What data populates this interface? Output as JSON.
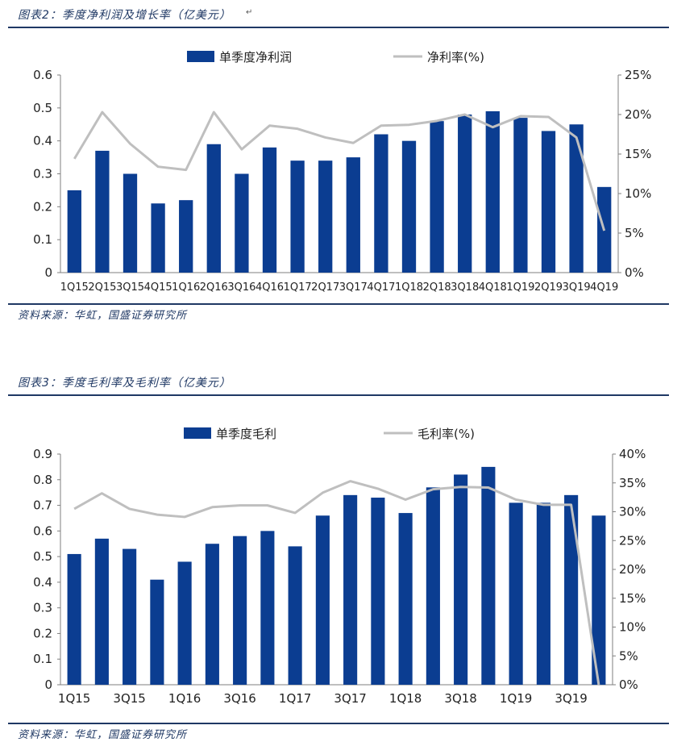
{
  "figures": [
    {
      "title": "图表2：季度净利润及增长率（亿美元）",
      "source": "资料来源：华虹，国盛证券研究所"
    },
    {
      "title": "图表3：季度毛利率及毛利率（亿美元）",
      "source": "资料来源：华虹，国盛证券研究所"
    }
  ],
  "chart_data": [
    {
      "type": "bar",
      "categories": [
        "1Q15",
        "2Q15",
        "3Q15",
        "4Q15",
        "1Q16",
        "2Q16",
        "3Q16",
        "4Q16",
        "1Q17",
        "2Q17",
        "3Q17",
        "4Q17",
        "1Q18",
        "2Q18",
        "3Q18",
        "4Q18",
        "1Q19",
        "2Q19",
        "3Q19",
        "4Q19"
      ],
      "tick_labels": [
        "1Q15",
        "2Q15",
        "3Q15",
        "4Q15",
        "1Q16",
        "2Q16",
        "3Q16",
        "4Q16",
        "1Q17",
        "2Q17",
        "3Q17",
        "4Q17",
        "1Q18",
        "2Q18",
        "3Q18",
        "4Q18",
        "1Q19",
        "2Q19",
        "3Q19",
        "4Q19"
      ],
      "series": [
        {
          "name": "单季度净利润",
          "kind": "bar",
          "axis": "left",
          "color": "#0b3d91",
          "values": [
            0.25,
            0.37,
            0.3,
            0.21,
            0.22,
            0.39,
            0.3,
            0.38,
            0.34,
            0.34,
            0.35,
            0.42,
            0.4,
            0.46,
            0.48,
            0.49,
            0.47,
            0.43,
            0.45,
            0.26
          ]
        },
        {
          "name": "净利率(%)",
          "kind": "line",
          "axis": "right",
          "color": "#bfbfbf",
          "values": [
            14.4,
            20.3,
            16.3,
            13.4,
            13.0,
            20.3,
            15.6,
            18.6,
            18.2,
            17.1,
            16.4,
            18.6,
            18.7,
            19.2,
            20.0,
            18.4,
            19.8,
            19.7,
            17.1,
            5.3
          ]
        }
      ],
      "ylim": [
        0,
        0.6
      ],
      "yticks": [
        "0",
        "0.1",
        "0.2",
        "0.3",
        "0.4",
        "0.5",
        "0.6"
      ],
      "y2lim": [
        0,
        25
      ],
      "y2ticks": [
        "0%",
        "5%",
        "10%",
        "15%",
        "20%",
        "25%"
      ],
      "legend": "top-center",
      "grid": false
    },
    {
      "type": "bar",
      "categories": [
        "1Q15",
        "2Q15",
        "3Q15",
        "4Q15",
        "1Q16",
        "2Q16",
        "3Q16",
        "4Q16",
        "1Q17",
        "2Q17",
        "3Q17",
        "4Q17",
        "1Q18",
        "2Q18",
        "3Q18",
        "4Q18",
        "1Q19",
        "2Q19",
        "3Q19",
        "4Q19"
      ],
      "tick_labels": [
        "1Q15",
        "",
        "3Q15",
        "",
        "1Q16",
        "",
        "3Q16",
        "",
        "1Q17",
        "",
        "3Q17",
        "",
        "1Q18",
        "",
        "3Q18",
        "",
        "1Q19",
        "",
        "3Q19",
        ""
      ],
      "series": [
        {
          "name": "单季度毛利",
          "kind": "bar",
          "axis": "left",
          "color": "#0b3d91",
          "values": [
            0.51,
            0.57,
            0.53,
            0.41,
            0.48,
            0.55,
            0.58,
            0.6,
            0.54,
            0.66,
            0.74,
            0.73,
            0.67,
            0.77,
            0.82,
            0.85,
            0.71,
            0.71,
            0.74,
            0.66
          ]
        },
        {
          "name": "毛利率(%)",
          "kind": "line",
          "axis": "right",
          "color": "#bfbfbf",
          "values": [
            30.5,
            33.2,
            30.5,
            29.5,
            29.1,
            30.8,
            31.1,
            31.1,
            29.8,
            33.3,
            35.3,
            34.0,
            32.1,
            33.9,
            34.3,
            34.2,
            32.1,
            31.2,
            31.2,
            0
          ]
        }
      ],
      "ylim": [
        0,
        0.9
      ],
      "yticks": [
        "0",
        "0.1",
        "0.2",
        "0.3",
        "0.4",
        "0.5",
        "0.6",
        "0.7",
        "0.8",
        "0.9"
      ],
      "y2lim": [
        0,
        40
      ],
      "y2ticks": [
        "0%",
        "5%",
        "10%",
        "15%",
        "20%",
        "25%",
        "30%",
        "35%",
        "40%"
      ],
      "legend": "top-center",
      "grid": false
    }
  ]
}
